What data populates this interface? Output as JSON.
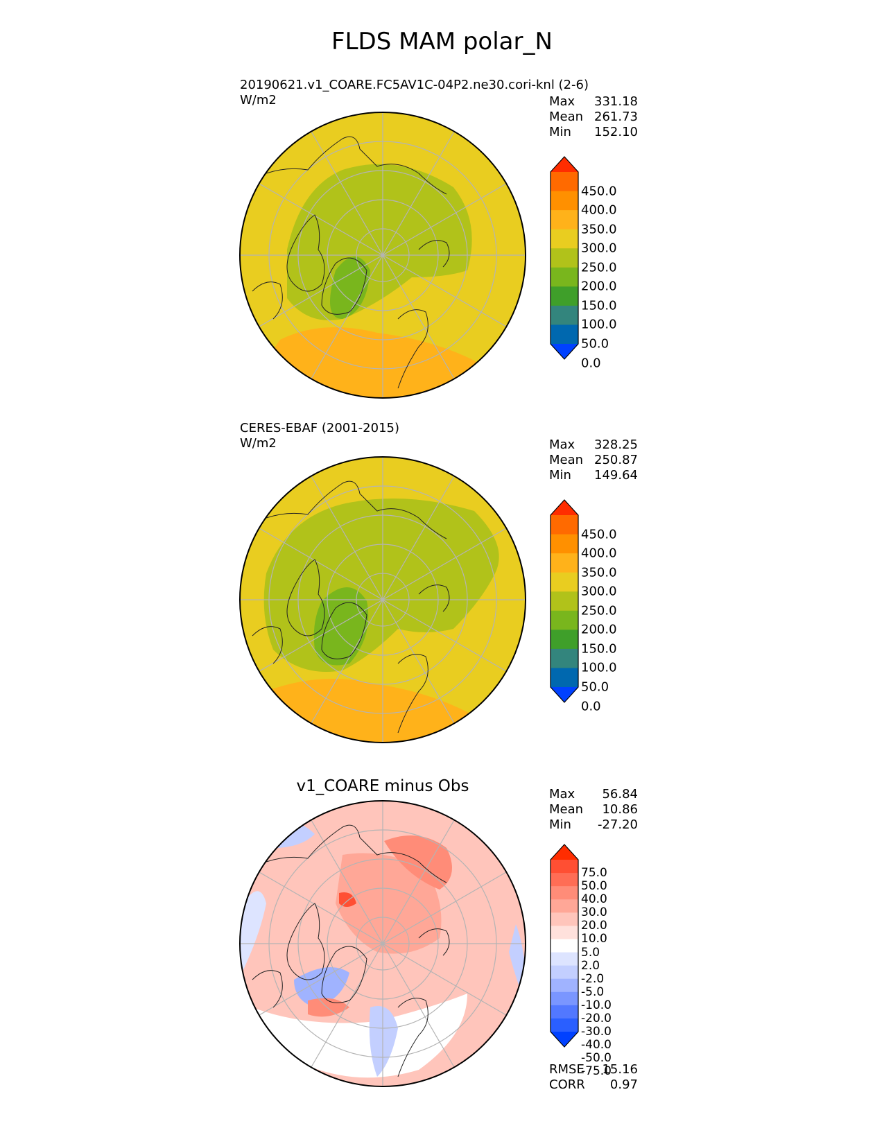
{
  "title": "FLDS MAM polar_N",
  "colors": {
    "abs_palette": [
      "#0041ff",
      "#0068af",
      "#33857d",
      "#3f9f2a",
      "#79b61d",
      "#b1c21a",
      "#e9cd20",
      "#ffb21a",
      "#ff9000",
      "#ff6a00",
      "#ff2d00"
    ],
    "diff_palette": [
      "#0041ff",
      "#2a5fff",
      "#5278ff",
      "#7a96ff",
      "#a0b3ff",
      "#c3cfff",
      "#dde4ff",
      "#ffffff",
      "#ffe1dc",
      "#ffc5bb",
      "#ffa797",
      "#ff8c78",
      "#ff6d55",
      "#ff4f33",
      "#ff2d00"
    ],
    "land_stroke": "#222222",
    "grid": "#b4b4b4"
  },
  "panels": [
    {
      "id": "test",
      "title_line1": "20190621.v1_COARE.FC5AV1C-04P2.ne30.cori-knl (2-6)",
      "title_line2": "W/m2",
      "stats": [
        {
          "label": "Max",
          "value": "331.18"
        },
        {
          "label": "Mean",
          "value": "261.73"
        },
        {
          "label": "Min",
          "value": "152.10"
        }
      ],
      "colorbar_ticks": [
        "450.0",
        "400.0",
        "350.0",
        "300.0",
        "250.0",
        "200.0",
        "150.0",
        "100.0",
        "50.0",
        "0.0"
      ]
    },
    {
      "id": "ref",
      "title_line1": "CERES-EBAF (2001-2015)",
      "title_line2": "W/m2",
      "stats": [
        {
          "label": "Max",
          "value": "328.25"
        },
        {
          "label": "Mean",
          "value": "250.87"
        },
        {
          "label": "Min",
          "value": "149.64"
        }
      ],
      "colorbar_ticks": [
        "450.0",
        "400.0",
        "350.0",
        "300.0",
        "250.0",
        "200.0",
        "150.0",
        "100.0",
        "50.0",
        "0.0"
      ]
    },
    {
      "id": "diff",
      "title": "v1_COARE minus Obs",
      "stats": [
        {
          "label": "Max",
          "value": "56.84"
        },
        {
          "label": "Mean",
          "value": "10.86"
        },
        {
          "label": "Min",
          "value": "-27.20"
        }
      ],
      "colorbar_ticks": [
        "75.0",
        "50.0",
        "40.0",
        "30.0",
        "20.0",
        "10.0",
        "5.0",
        "2.0",
        "-2.0",
        "-5.0",
        "-10.0",
        "-20.0",
        "-30.0",
        "-40.0",
        "-50.0",
        "-75.0"
      ],
      "metrics": [
        {
          "label": "RMSE",
          "value": "15.16"
        },
        {
          "label": "CORR",
          "value": "0.97"
        }
      ]
    }
  ]
}
